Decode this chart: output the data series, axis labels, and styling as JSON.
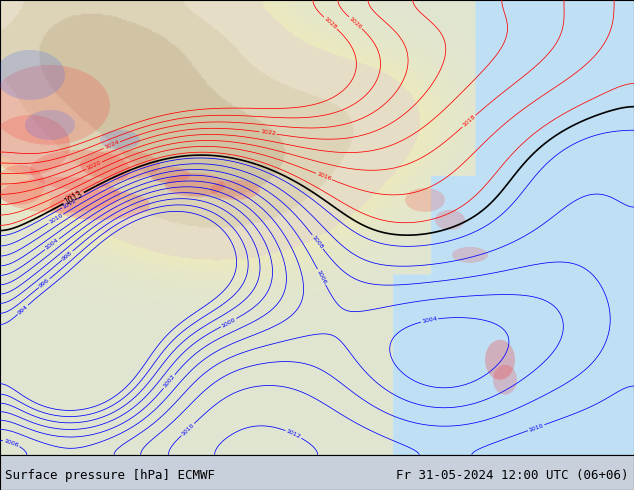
{
  "title_left": "Surface pressure [hPa] ECMWF",
  "title_right": "Fr 31-05-2024 12:00 UTC (06+06)",
  "fig_width": 6.34,
  "fig_height": 4.9,
  "dpi": 100,
  "footer_font_size": 9,
  "footer_bg": "#c8d0dc",
  "map_bg": "#cde0f0",
  "land_color_low": "#e8e0c8",
  "land_color_high": "#d0c8a0",
  "green_land": "#d8e8d0"
}
